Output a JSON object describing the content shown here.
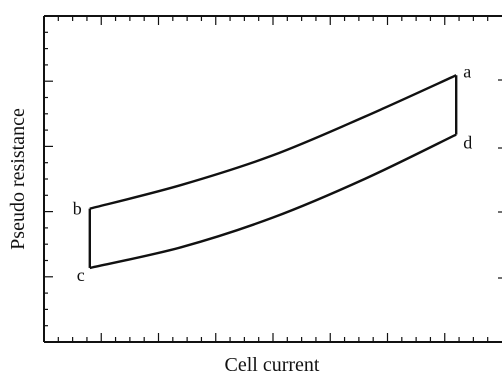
{
  "chart_data": {
    "type": "line",
    "title": "",
    "xlabel": "Cell current",
    "ylabel": "Pseudo resistance",
    "grid": false,
    "legend": "none",
    "x_tick_labels_shown": false,
    "y_tick_labels_shown": false,
    "series": [
      {
        "x": [
          0.1,
          0.3,
          0.5,
          0.7,
          0.9
        ],
        "y": [
          0.45,
          0.53,
          0.63,
          0.76,
          0.9
        ],
        "point_label_start": "b",
        "point_label_end": "a"
      },
      {
        "x": [
          0.1,
          0.3,
          0.5,
          0.7,
          0.9
        ],
        "y": [
          0.25,
          0.32,
          0.42,
          0.55,
          0.7
        ],
        "point_label_start": "c",
        "point_label_end": "d"
      }
    ],
    "point_labels": {
      "a": "a",
      "b": "b",
      "c": "c",
      "d": "d"
    },
    "xlim": [
      0,
      1
    ],
    "ylim": [
      0,
      1.1
    ]
  }
}
